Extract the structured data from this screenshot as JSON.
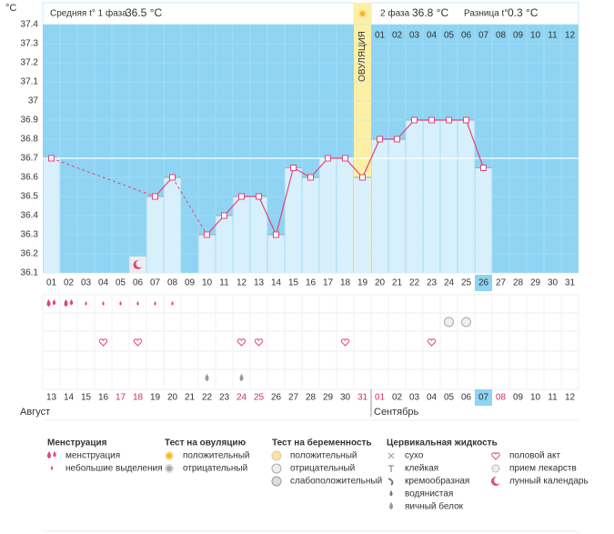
{
  "chart_data": {
    "type": "bar",
    "y_unit": "°C",
    "categories": [
      "01",
      "02",
      "03",
      "04",
      "05",
      "06",
      "07",
      "08",
      "09",
      "10",
      "11",
      "12",
      "13",
      "14",
      "15",
      "16",
      "17",
      "18",
      "19",
      "20",
      "21",
      "22",
      "23",
      "24",
      "25",
      "26",
      "27",
      "28",
      "29",
      "30",
      "31"
    ],
    "values": [
      36.7,
      null,
      null,
      null,
      null,
      null,
      36.5,
      36.6,
      null,
      36.3,
      36.4,
      36.5,
      36.5,
      36.3,
      36.65,
      36.6,
      36.7,
      36.7,
      36.6,
      36.8,
      36.8,
      36.9,
      36.9,
      36.9,
      36.9,
      36.65,
      null,
      null,
      null,
      null,
      null
    ],
    "ylim": [
      36.1,
      37.4
    ],
    "yticks": [
      36.1,
      36.2,
      36.3,
      36.4,
      36.5,
      36.6,
      36.7,
      36.8,
      36.9,
      37,
      37.1,
      37.2,
      37.3,
      37.4
    ],
    "coverline": 36.7,
    "ovulation": {
      "day": "19",
      "label": "ОВУЛЯЦИЯ"
    },
    "phase2_days": [
      "01",
      "02",
      "03",
      "04",
      "05",
      "06",
      "07",
      "08",
      "09",
      "10",
      "11",
      "12"
    ],
    "today": "26",
    "colors": {
      "background": "#8fd4f2",
      "bar": "#d8effc",
      "line": "#e0457b",
      "ovulation": "#fdf0a6"
    }
  },
  "header": {
    "phase1_label": "Средняя t° 1 фаза",
    "phase1_value": "36.5 °C",
    "phase2_label": "2 фаза",
    "phase2_value": "36.8 °C",
    "diff_label": "Разница t°",
    "diff_value": "0.3 °C"
  },
  "calendar": {
    "dates": [
      "13",
      "14",
      "15",
      "16",
      "17",
      "18",
      "19",
      "20",
      "21",
      "22",
      "23",
      "24",
      "25",
      "26",
      "27",
      "28",
      "29",
      "30",
      "31",
      "01",
      "02",
      "03",
      "04",
      "05",
      "06",
      "07",
      "08",
      "09",
      "10",
      "11",
      "12"
    ],
    "red": [
      false,
      false,
      false,
      false,
      true,
      true,
      false,
      false,
      false,
      false,
      false,
      true,
      true,
      false,
      false,
      false,
      false,
      false,
      true,
      true,
      false,
      false,
      false,
      false,
      false,
      false,
      true,
      false,
      false,
      false,
      false
    ],
    "today": "07",
    "months": [
      "Август",
      "Сентябрь"
    ]
  },
  "events": {
    "menstruation": [
      "01",
      "02"
    ],
    "spotting": [
      "03",
      "04",
      "05",
      "06",
      "07",
      "08"
    ],
    "pregnancy_negative": [
      "24",
      "25"
    ],
    "sex": [
      "04",
      "06",
      "12",
      "13",
      "18",
      "23"
    ],
    "mucus_egg_white": [
      "10",
      "12"
    ],
    "moon": [
      "06"
    ]
  },
  "legend": [
    {
      "title": "Менструация",
      "items": [
        "менструация",
        "небольшие выделения"
      ]
    },
    {
      "title": "Тест на овуляцию",
      "items": [
        "положительный",
        "отрицательный"
      ]
    },
    {
      "title": "Тест на беременность",
      "items": [
        "положительный",
        "отрицательный",
        "слабоположительный"
      ]
    },
    {
      "title": "Цервикальная жидкость",
      "items": [
        "сухо",
        "клейкая",
        "кремообразная",
        "водянистая",
        "яичный белок"
      ]
    },
    {
      "items": [
        "половой акт",
        "прием лекарств",
        "лунный календарь"
      ]
    }
  ]
}
